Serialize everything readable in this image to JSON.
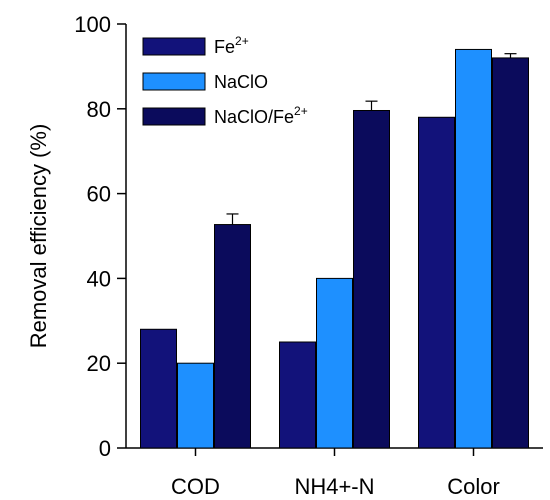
{
  "chart_data": {
    "type": "bar",
    "categories": [
      "COD",
      "NH4+-N",
      "Color"
    ],
    "series": [
      {
        "name": "Fe",
        "sup": "2+",
        "color": "#12127a",
        "values": [
          28,
          25,
          78
        ],
        "errors": [
          0,
          0,
          0
        ]
      },
      {
        "name": "NaClO",
        "sup": "",
        "color": "#1e90ff",
        "values": [
          20,
          40,
          94
        ],
        "errors": [
          0,
          0,
          0
        ]
      },
      {
        "name": "NaClO/Fe",
        "sup": "2+",
        "color": "#0b0b5c",
        "values": [
          52.7,
          79.6,
          92
        ],
        "errors": [
          2.5,
          2.2,
          1
        ]
      }
    ],
    "ylabel": "Removal efficiency (%)",
    "xlabel": "",
    "title": "",
    "ylim": [
      0,
      100
    ],
    "yticks": [
      0,
      20,
      40,
      60,
      80,
      100
    ],
    "legend_position": "top-left",
    "grid": false
  }
}
